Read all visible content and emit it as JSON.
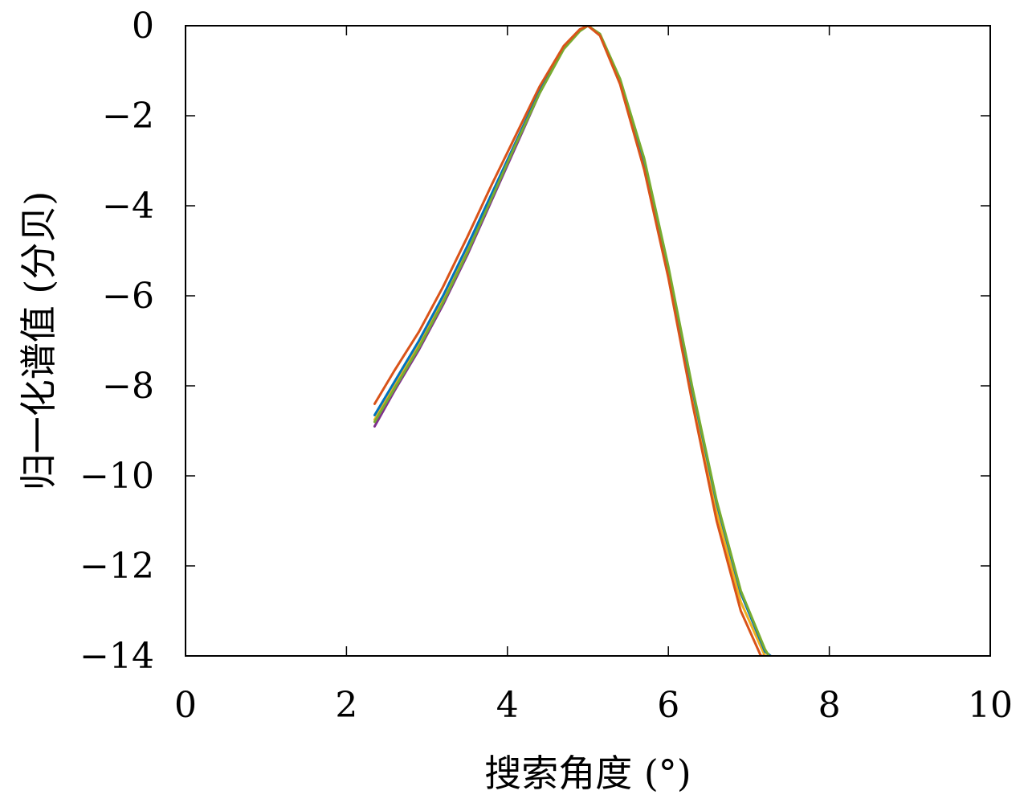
{
  "chart_data": {
    "type": "line",
    "xlabel": "搜索角度 (°)",
    "ylabel": "归一化谱值 (分贝)",
    "xlim": [
      0,
      10
    ],
    "ylim": [
      -14,
      0
    ],
    "xticks": [
      0,
      2,
      4,
      6,
      8,
      10
    ],
    "yticks": [
      0,
      -2,
      -4,
      -6,
      -8,
      -10,
      -12,
      -14
    ],
    "xtick_labels": [
      "0",
      "2",
      "4",
      "6",
      "8",
      "10"
    ],
    "ytick_labels": [
      "0",
      "−2",
      "−4",
      "−6",
      "−8",
      "−10",
      "−12",
      "−14"
    ],
    "grid": false,
    "legend": "none",
    "series": [
      {
        "color": "#7e2f8e",
        "x": [
          2.35,
          2.6,
          2.9,
          3.2,
          3.5,
          3.8,
          4.1,
          4.4,
          4.7,
          4.9,
          5.0,
          5.15,
          5.4,
          5.7,
          6.0,
          6.3,
          6.6,
          6.9,
          7.2,
          7.27
        ],
        "y": [
          -8.9,
          -8.1,
          -7.2,
          -6.2,
          -5.1,
          -3.9,
          -2.7,
          -1.5,
          -0.5,
          -0.1,
          0.0,
          -0.2,
          -1.2,
          -3.0,
          -5.4,
          -8.1,
          -10.6,
          -12.6,
          -13.9,
          -14.0
        ]
      },
      {
        "color": "#edb120",
        "x": [
          2.35,
          2.6,
          2.9,
          3.2,
          3.5,
          3.8,
          4.1,
          4.4,
          4.7,
          4.9,
          5.0,
          5.15,
          5.4,
          5.7,
          6.0,
          6.3,
          6.6,
          6.9,
          7.2,
          7.23
        ],
        "y": [
          -8.75,
          -8.0,
          -7.1,
          -6.1,
          -5.0,
          -3.8,
          -2.6,
          -1.45,
          -0.48,
          -0.1,
          0.0,
          -0.2,
          -1.25,
          -3.1,
          -5.5,
          -8.2,
          -10.8,
          -12.8,
          -14.0,
          -14.0
        ]
      },
      {
        "color": "#0072bd",
        "x": [
          2.35,
          2.6,
          2.9,
          3.2,
          3.5,
          3.8,
          4.1,
          4.4,
          4.7,
          4.9,
          5.0,
          5.15,
          5.4,
          5.7,
          6.0,
          6.3,
          6.6,
          6.9,
          7.2,
          7.27
        ],
        "y": [
          -8.65,
          -7.9,
          -7.0,
          -6.0,
          -4.9,
          -3.75,
          -2.6,
          -1.45,
          -0.5,
          -0.1,
          0.0,
          -0.2,
          -1.2,
          -3.0,
          -5.4,
          -8.1,
          -10.6,
          -12.6,
          -13.9,
          -14.0
        ]
      },
      {
        "color": "#77ac30",
        "x": [
          2.35,
          2.6,
          2.9,
          3.2,
          3.5,
          3.8,
          4.1,
          4.4,
          4.7,
          4.9,
          5.0,
          5.15,
          5.4,
          5.7,
          6.0,
          6.3,
          6.6,
          6.9,
          7.2,
          7.25
        ],
        "y": [
          -8.8,
          -8.05,
          -7.15,
          -6.15,
          -5.05,
          -3.85,
          -2.65,
          -1.5,
          -0.52,
          -0.12,
          0.0,
          -0.18,
          -1.18,
          -2.95,
          -5.35,
          -8.05,
          -10.55,
          -12.55,
          -13.85,
          -14.0
        ]
      },
      {
        "color": "#d95319",
        "x": [
          2.35,
          2.6,
          2.9,
          3.2,
          3.5,
          3.8,
          4.1,
          4.4,
          4.7,
          4.9,
          5.0,
          5.15,
          5.4,
          5.7,
          6.0,
          6.3,
          6.6,
          6.9,
          7.15,
          7.18
        ],
        "y": [
          -8.4,
          -7.65,
          -6.8,
          -5.8,
          -4.7,
          -3.55,
          -2.45,
          -1.35,
          -0.45,
          -0.08,
          0.0,
          -0.22,
          -1.3,
          -3.2,
          -5.6,
          -8.4,
          -11.0,
          -13.0,
          -14.0,
          -14.0
        ]
      }
    ]
  }
}
